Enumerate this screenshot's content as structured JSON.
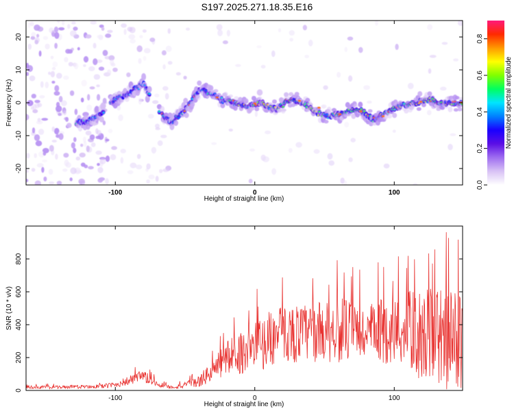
{
  "title": "S197.2025.271.18.35.E16",
  "colors": {
    "snr_line": "#e8302e",
    "background": "#ffffff",
    "frame": "#000000"
  },
  "colorbar_stops": [
    "#ffffff",
    "#d8c2f5",
    "#9f6ef0",
    "#5b0fe5",
    "#1a00ff",
    "#0080ff",
    "#00e5ff",
    "#00ff60",
    "#80ff00",
    "#ffff00",
    "#ff9900",
    "#ff2a00",
    "#ff1a7a"
  ],
  "chart_data": [
    {
      "type": "heatmap",
      "name": "spectrogram",
      "xlabel": "Height of straight line (km)",
      "ylabel": "Frequency (Hz)",
      "xlim": [
        -164,
        149
      ],
      "ylim": [
        -25,
        25
      ],
      "xticks": [
        -100,
        0,
        100
      ],
      "yticks": [
        -20,
        -10,
        0,
        10,
        20
      ],
      "colorbar": {
        "label": "Normalized spectral amplitude",
        "range": [
          0,
          0.9
        ],
        "ticks": [
          "0.0",
          "0.2",
          "0.4",
          "0.6",
          "0.8"
        ],
        "tick_values": [
          0,
          0.2,
          0.4,
          0.6,
          0.8
        ]
      },
      "ridge": {
        "x": [
          -120,
          -110,
          -100,
          -90,
          -80,
          -72,
          -60,
          -50,
          -40,
          -32,
          -25,
          -15,
          -5,
          5,
          15,
          25,
          35,
          45,
          55,
          65,
          75,
          85,
          95,
          105,
          115,
          125,
          135,
          149
        ],
        "freq_hz": [
          -6,
          -3,
          1,
          3,
          6,
          -1,
          -6,
          -2,
          4,
          3,
          1,
          0,
          -1,
          0,
          -2,
          1,
          0,
          -3,
          -4,
          -3,
          -2,
          -5,
          -3,
          -1,
          0,
          1,
          0,
          0
        ]
      }
    },
    {
      "type": "line",
      "name": "snr",
      "xlabel": "Height of straight line (km)",
      "ylabel": "SNR (10 * v/v)",
      "xlim": [
        -164,
        149
      ],
      "ylim": [
        0,
        1000
      ],
      "xticks": [
        -100,
        0,
        100
      ],
      "yticks": [
        0,
        200,
        400,
        600,
        800
      ],
      "envelope": {
        "x": [
          -164,
          -140,
          -110,
          -100,
          -90,
          -80,
          -70,
          -60,
          -50,
          -40,
          -30,
          -20,
          -10,
          0,
          10,
          20,
          30,
          40,
          50,
          60,
          70,
          80,
          90,
          100,
          110,
          120,
          130,
          140,
          149
        ],
        "mean": [
          20,
          20,
          25,
          35,
          60,
          85,
          40,
          20,
          30,
          55,
          120,
          200,
          230,
          260,
          310,
          350,
          345,
          350,
          360,
          370,
          360,
          340,
          360,
          360,
          370,
          330,
          340,
          300,
          300
        ],
        "spread": [
          10,
          10,
          12,
          18,
          30,
          40,
          20,
          10,
          20,
          35,
          70,
          110,
          130,
          160,
          170,
          170,
          180,
          180,
          190,
          200,
          190,
          180,
          200,
          210,
          240,
          280,
          300,
          320,
          320
        ]
      }
    }
  ]
}
